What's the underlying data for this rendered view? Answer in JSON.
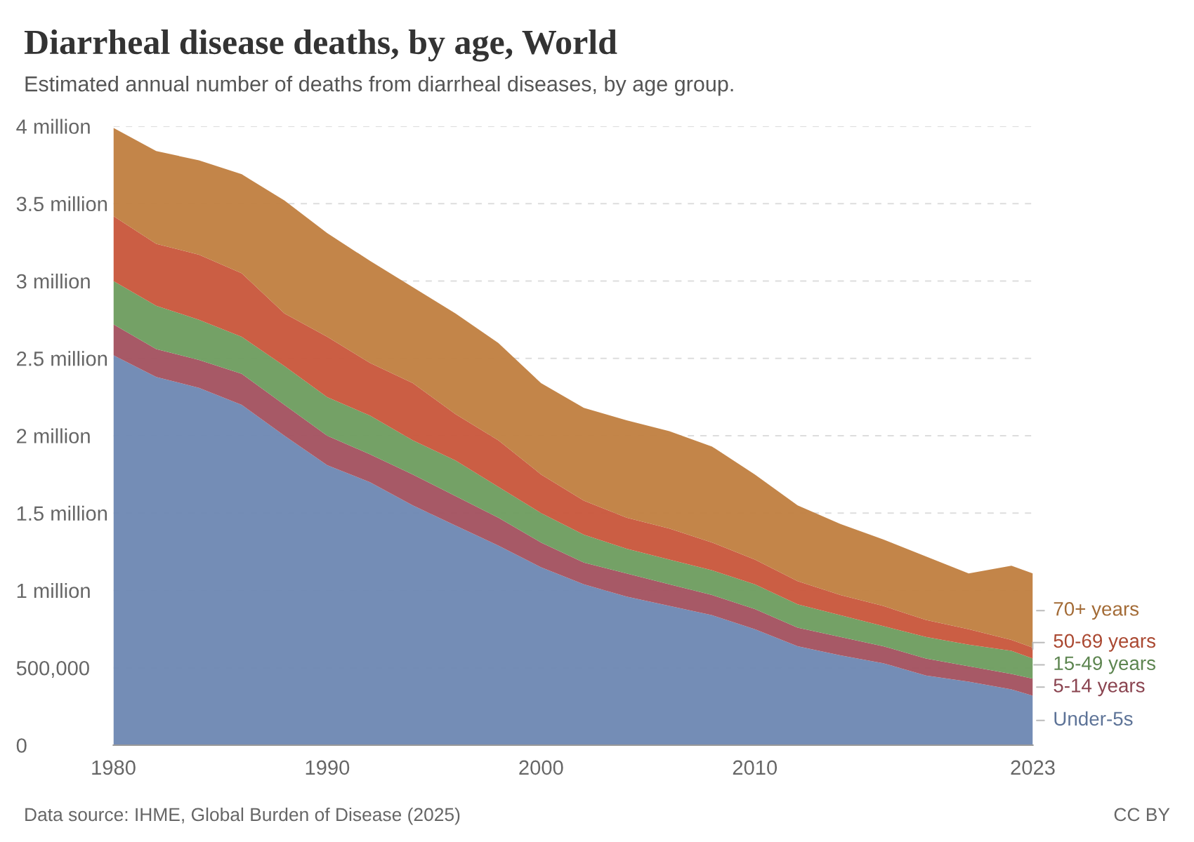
{
  "chart_data": {
    "type": "area",
    "stacked": true,
    "title": "Diarrheal disease deaths, by age, World",
    "subtitle": "Estimated annual number of deaths from diarrheal diseases, by age group.",
    "annotations": [
      "Data source: IHME, Global Burden of Disease (2025)",
      "CC BY"
    ],
    "x": [
      1980,
      1982,
      1984,
      1986,
      1988,
      1990,
      1992,
      1994,
      1996,
      1998,
      2000,
      2002,
      2004,
      2006,
      2008,
      2010,
      2012,
      2014,
      2016,
      2018,
      2020,
      2022,
      2023
    ],
    "series": [
      {
        "name": "Under-5s",
        "color": "#6d87b2",
        "values": [
          2520000,
          2380000,
          2310000,
          2200000,
          2000000,
          1810000,
          1700000,
          1550000,
          1420000,
          1290000,
          1150000,
          1040000,
          960000,
          900000,
          840000,
          750000,
          640000,
          580000,
          530000,
          450000,
          410000,
          360000,
          320000
        ]
      },
      {
        "name": "5-14 years",
        "color": "#a2505e",
        "values": [
          200000,
          180000,
          180000,
          200000,
          200000,
          190000,
          180000,
          200000,
          190000,
          180000,
          160000,
          140000,
          150000,
          140000,
          130000,
          130000,
          120000,
          120000,
          110000,
          110000,
          100000,
          100000,
          110000
        ]
      },
      {
        "name": "15-49 years",
        "color": "#6d9c5e",
        "values": [
          280000,
          280000,
          260000,
          240000,
          250000,
          250000,
          250000,
          220000,
          230000,
          200000,
          190000,
          180000,
          160000,
          160000,
          160000,
          160000,
          150000,
          140000,
          130000,
          140000,
          140000,
          150000,
          130000
        ]
      },
      {
        "name": "50-69 years",
        "color": "#c8553a",
        "values": [
          420000,
          400000,
          420000,
          410000,
          340000,
          390000,
          340000,
          370000,
          300000,
          300000,
          250000,
          220000,
          200000,
          200000,
          180000,
          160000,
          150000,
          130000,
          130000,
          110000,
          100000,
          70000,
          70000
        ]
      },
      {
        "name": "70+ years",
        "color": "#c07e3f",
        "values": [
          570000,
          600000,
          610000,
          640000,
          730000,
          670000,
          660000,
          620000,
          650000,
          630000,
          590000,
          600000,
          630000,
          630000,
          620000,
          550000,
          490000,
          460000,
          430000,
          410000,
          360000,
          480000,
          480000
        ]
      }
    ],
    "xlim": [
      1980,
      2023
    ],
    "xticks": [
      1980,
      1990,
      2000,
      2010,
      2023
    ],
    "ylim": [
      0,
      4000000
    ],
    "yticks": [
      {
        "value": 0,
        "label": "0"
      },
      {
        "value": 500000,
        "label": "500,000"
      },
      {
        "value": 1000000,
        "label": "1 million"
      },
      {
        "value": 1500000,
        "label": "1.5 million"
      },
      {
        "value": 2000000,
        "label": "2 million"
      },
      {
        "value": 2500000,
        "label": "2.5 million"
      },
      {
        "value": 3000000,
        "label": "3 million"
      },
      {
        "value": 3500000,
        "label": "3.5 million"
      },
      {
        "value": 4000000,
        "label": "4 million"
      }
    ],
    "grid": "y",
    "legend": "right"
  }
}
